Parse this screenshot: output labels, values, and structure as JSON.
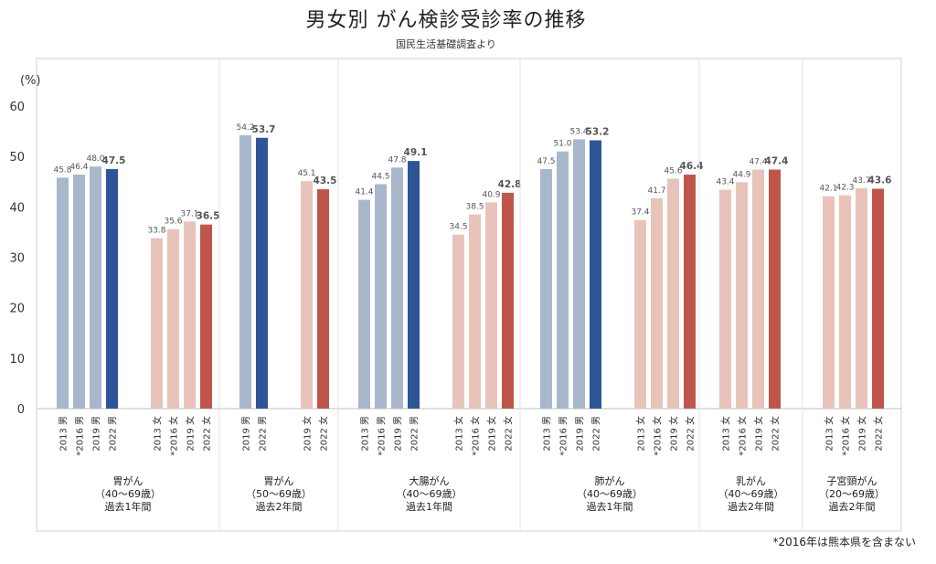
{
  "title": "男女別 がん検診受診率の推移",
  "subtitle": "国民生活基礎調査より",
  "footnote": "*2016年は熊本県を含まない",
  "colors": {
    "male_light": "#a9b7cc",
    "male_dark": "#2e5597",
    "female_light": "#e8c3ba",
    "female_dark": "#c0564b",
    "frame": "#d0d0d0"
  },
  "chart_data": {
    "type": "bar",
    "yunit": "(%)",
    "ylim": [
      0,
      60
    ],
    "yticks": [
      0,
      10,
      20,
      30,
      40,
      50,
      60
    ],
    "grid": false,
    "groups": [
      {
        "label": [
          "胃がん",
          "（40～69歳）",
          "過去1年間"
        ],
        "subgroups": [
          {
            "sex": "male",
            "bars": [
              {
                "label": "2013 男",
                "value": 45.8,
                "value_label": "45.8"
              },
              {
                "label": "*2016 男",
                "value": 46.4,
                "value_label": "46.4"
              },
              {
                "label": "2019 男",
                "value": 48.0,
                "value_label": "48.0"
              },
              {
                "label": "2022 男",
                "value": 47.5,
                "value_label": "47.5",
                "highlight": true
              }
            ]
          },
          {
            "sex": "female",
            "bars": [
              {
                "label": "2013 女",
                "value": 33.8,
                "value_label": "33.8"
              },
              {
                "label": "*2016 女",
                "value": 35.6,
                "value_label": "35.6"
              },
              {
                "label": "2019 女",
                "value": 37.1,
                "value_label": "37.1"
              },
              {
                "label": "2022 女",
                "value": 36.5,
                "value_label": "36.5",
                "highlight": true
              }
            ]
          }
        ]
      },
      {
        "label": [
          "胃がん",
          "（50～69歳）",
          "過去2年間"
        ],
        "subgroups": [
          {
            "sex": "male",
            "bars": [
              {
                "label": "2019 男",
                "value": 54.2,
                "value_label": "54.2"
              },
              {
                "label": "2022 男",
                "value": 53.7,
                "value_label": "53.7",
                "highlight": true
              }
            ]
          },
          {
            "sex": "female",
            "bars": [
              {
                "label": "2019 女",
                "value": 45.1,
                "value_label": "45.1"
              },
              {
                "label": "2022 女",
                "value": 43.5,
                "value_label": "43.5",
                "highlight": true
              }
            ]
          }
        ]
      },
      {
        "label": [
          "大腸がん",
          "（40～69歳）",
          "過去1年間"
        ],
        "subgroups": [
          {
            "sex": "male",
            "bars": [
              {
                "label": "2013 男",
                "value": 41.4,
                "value_label": "41.4"
              },
              {
                "label": "*2016 男",
                "value": 44.5,
                "value_label": "44.5"
              },
              {
                "label": "2019 男",
                "value": 47.8,
                "value_label": "47.8"
              },
              {
                "label": "2022 男",
                "value": 49.1,
                "value_label": "49.1",
                "highlight": true
              }
            ]
          },
          {
            "sex": "female",
            "bars": [
              {
                "label": "2013 女",
                "value": 34.5,
                "value_label": "34.5"
              },
              {
                "label": "*2016 女",
                "value": 38.5,
                "value_label": "38.5"
              },
              {
                "label": "2019 女",
                "value": 40.9,
                "value_label": "40.9"
              },
              {
                "label": "2022 女",
                "value": 42.8,
                "value_label": "42.8",
                "highlight": true
              }
            ]
          }
        ]
      },
      {
        "label": [
          "肺がん",
          "（40～69歳）",
          "過去1年間"
        ],
        "subgroups": [
          {
            "sex": "male",
            "bars": [
              {
                "label": "2013 男",
                "value": 47.5,
                "value_label": "47.5"
              },
              {
                "label": "*2016 男",
                "value": 51.0,
                "value_label": "51.0"
              },
              {
                "label": "2019 男",
                "value": 53.4,
                "value_label": "53.4"
              },
              {
                "label": "2022 男",
                "value": 53.2,
                "value_label": "53.2",
                "highlight": true
              }
            ]
          },
          {
            "sex": "female",
            "bars": [
              {
                "label": "2013 女",
                "value": 37.4,
                "value_label": "37.4"
              },
              {
                "label": "*2016 女",
                "value": 41.7,
                "value_label": "41.7"
              },
              {
                "label": "2019 女",
                "value": 45.6,
                "value_label": "45.6"
              },
              {
                "label": "2022 女",
                "value": 46.4,
                "value_label": "46.4",
                "highlight": true
              }
            ]
          }
        ]
      },
      {
        "label": [
          "乳がん",
          "（40～69歳）",
          "過去2年間"
        ],
        "subgroups": [
          {
            "sex": "female",
            "bars": [
              {
                "label": "2013 女",
                "value": 43.4,
                "value_label": "43.4"
              },
              {
                "label": "*2016 女",
                "value": 44.9,
                "value_label": "44.9"
              },
              {
                "label": "2019 女",
                "value": 47.4,
                "value_label": "47.4"
              },
              {
                "label": "2022 女",
                "value": 47.4,
                "value_label": "47.4",
                "highlight": true
              }
            ]
          }
        ]
      },
      {
        "label": [
          "子宮頸がん",
          "（20～69歳）",
          "過去2年間"
        ],
        "subgroups": [
          {
            "sex": "female",
            "bars": [
              {
                "label": "2013 女",
                "value": 42.1,
                "value_label": "42.1"
              },
              {
                "label": "*2016 女",
                "value": 42.3,
                "value_label": "42.3"
              },
              {
                "label": "2019 女",
                "value": 43.7,
                "value_label": "43.7"
              },
              {
                "label": "2022 女",
                "value": 43.6,
                "value_label": "43.6",
                "highlight": true
              }
            ]
          }
        ]
      }
    ]
  }
}
